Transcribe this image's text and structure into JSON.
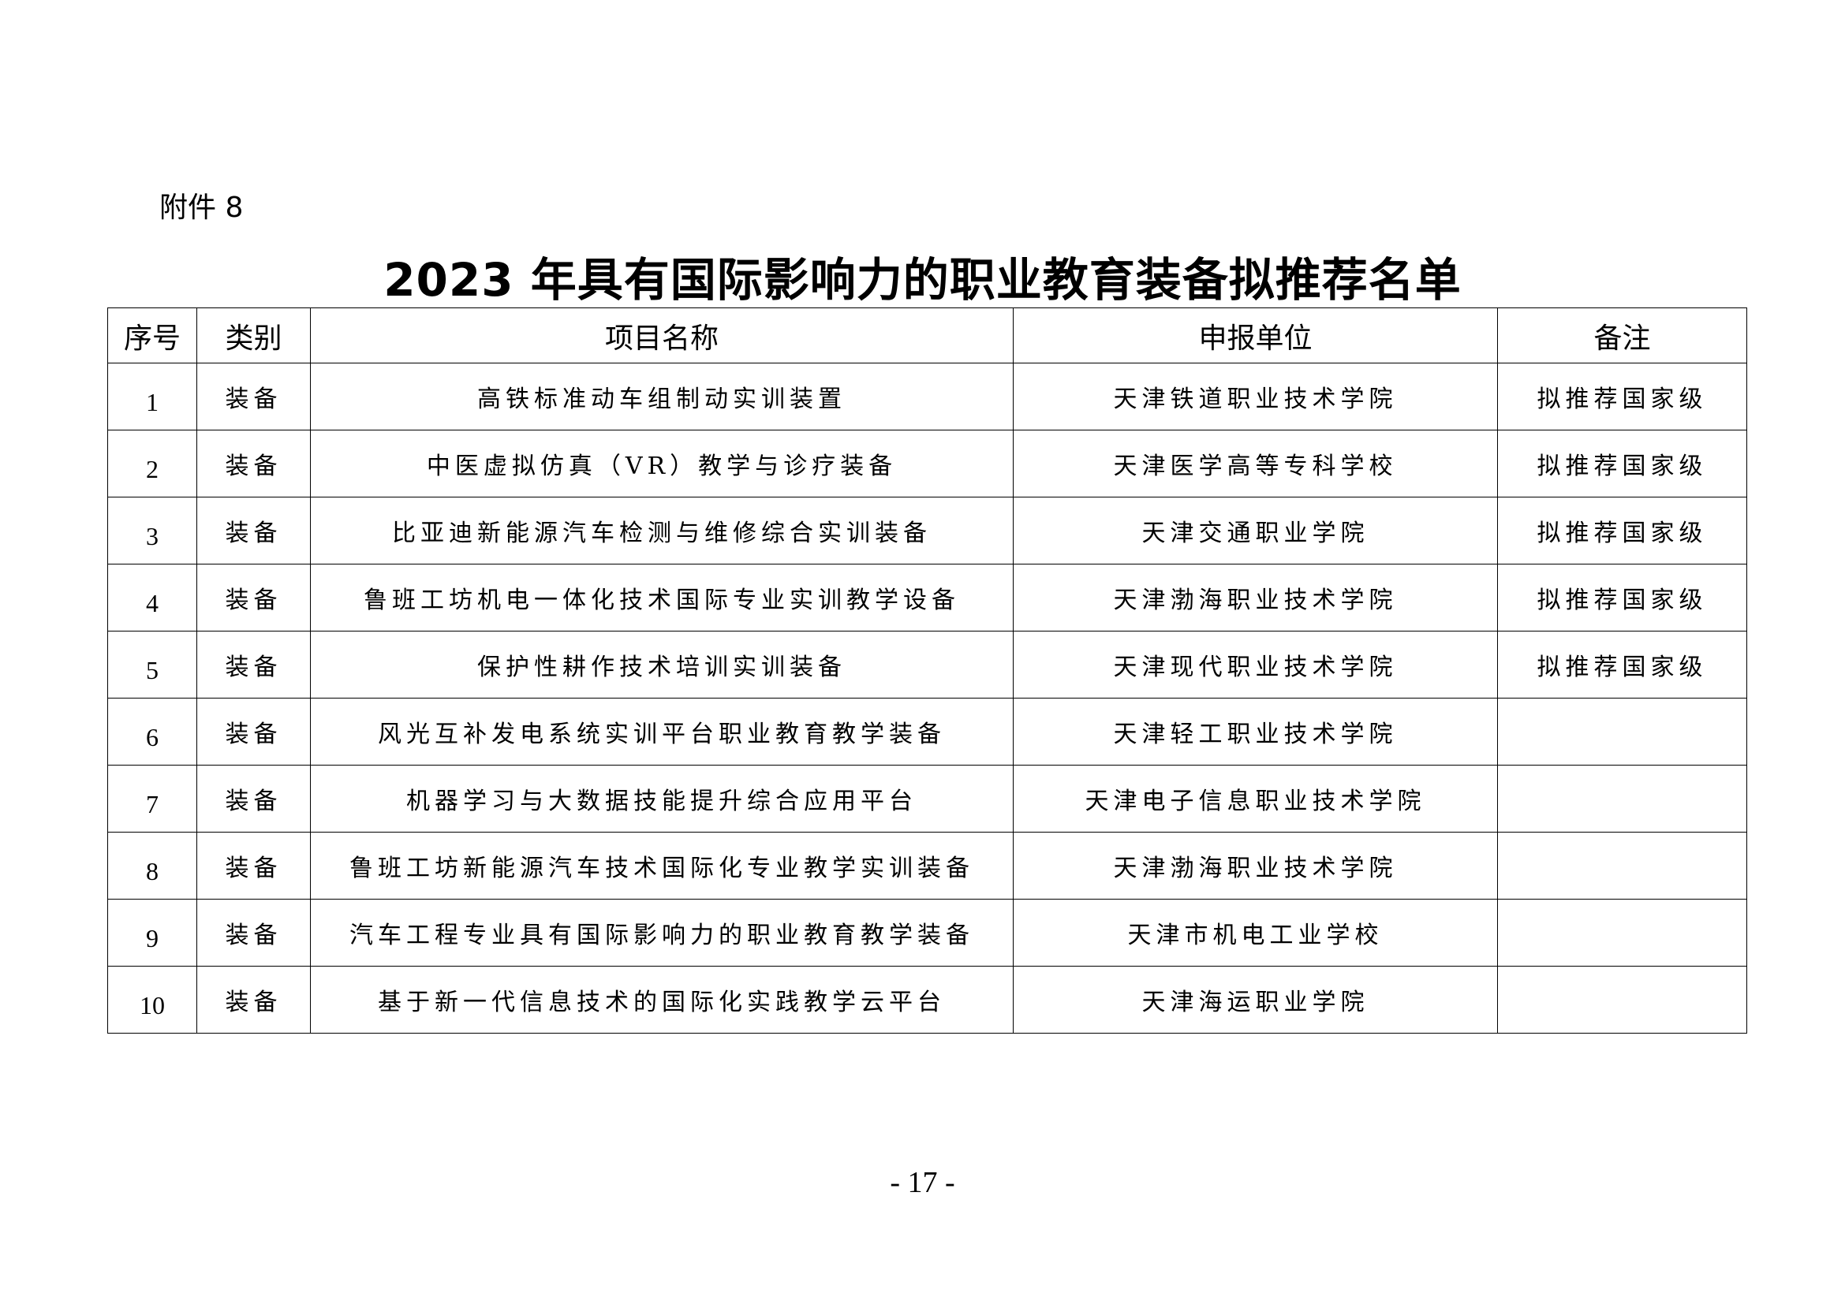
{
  "attachment_label": "附件 8",
  "title": "2023 年具有国际影响力的职业教育装备拟推荐名单",
  "table": {
    "headers": [
      "序号",
      "类别",
      "项目名称",
      "申报单位",
      "备注"
    ],
    "rows": [
      [
        "1",
        "装备",
        "高铁标准动车组制动实训装置",
        "天津铁道职业技术学院",
        "拟推荐国家级"
      ],
      [
        "2",
        "装备",
        "中医虚拟仿真（VR）教学与诊疗装备",
        "天津医学高等专科学校",
        "拟推荐国家级"
      ],
      [
        "3",
        "装备",
        "比亚迪新能源汽车检测与维修综合实训装备",
        "天津交通职业学院",
        "拟推荐国家级"
      ],
      [
        "4",
        "装备",
        "鲁班工坊机电一体化技术国际专业实训教学设备",
        "天津渤海职业技术学院",
        "拟推荐国家级"
      ],
      [
        "5",
        "装备",
        "保护性耕作技术培训实训装备",
        "天津现代职业技术学院",
        "拟推荐国家级"
      ],
      [
        "6",
        "装备",
        "风光互补发电系统实训平台职业教育教学装备",
        "天津轻工职业技术学院",
        ""
      ],
      [
        "7",
        "装备",
        "机器学习与大数据技能提升综合应用平台",
        "天津电子信息职业技术学院",
        ""
      ],
      [
        "8",
        "装备",
        "鲁班工坊新能源汽车技术国际化专业教学实训装备",
        "天津渤海职业技术学院",
        ""
      ],
      [
        "9",
        "装备",
        "汽车工程专业具有国际影响力的职业教育教学装备",
        "天津市机电工业学校",
        ""
      ],
      [
        "10",
        "装备",
        "基于新一代信息技术的国际化实践教学云平台",
        "天津海运职业学院",
        ""
      ]
    ]
  },
  "page_number": "- 17 -"
}
